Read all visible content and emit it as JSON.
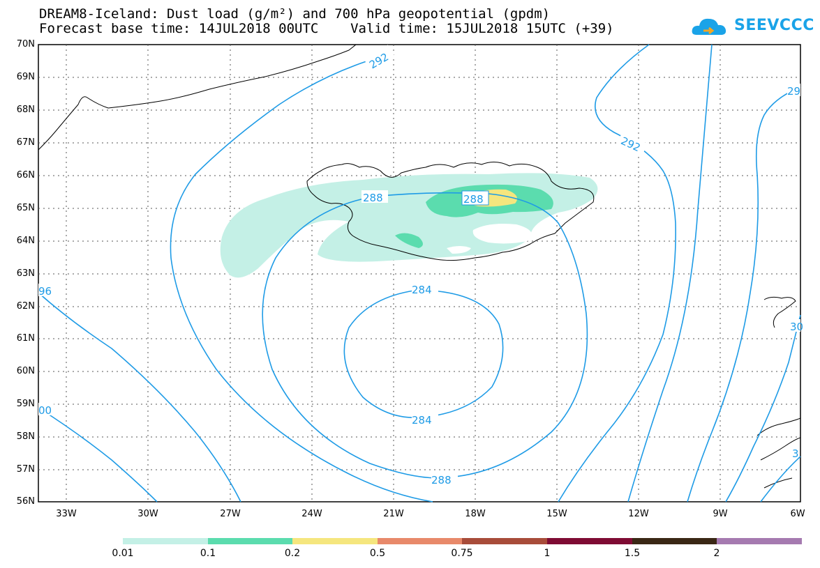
{
  "header": {
    "title_line1": "DREAM8-Iceland: Dust load (g/m²) and 700 hPa geopotential (gpdm)",
    "title_line2": "Forecast base time: 14JUL2018 00UTC    Valid time: 15JUL2018 15UTC (+39)"
  },
  "logo": {
    "text": "SEEVCCC",
    "color": "#1aa3e8"
  },
  "map": {
    "lat_labels": [
      "70N",
      "69N",
      "68N",
      "67N",
      "66N",
      "65N",
      "64N",
      "63N",
      "62N",
      "61N",
      "60N",
      "59N",
      "58N",
      "57N",
      "56N"
    ],
    "lon_labels": [
      "33W",
      "30W",
      "27W",
      "24W",
      "21W",
      "18W",
      "15W",
      "12W",
      "9W",
      "6W"
    ],
    "contour_color": "#1e9be6",
    "contour_labels": [
      {
        "text": "292",
        "name": "contour-label-292-north"
      },
      {
        "text": "292",
        "name": "contour-label-292-east"
      },
      {
        "text": "29",
        "name": "contour-label-29-ne"
      },
      {
        "text": "288",
        "name": "contour-label-288-west"
      },
      {
        "text": "288",
        "name": "contour-label-288-iceland"
      },
      {
        "text": "288",
        "name": "contour-label-288-south"
      },
      {
        "text": "284",
        "name": "contour-label-284-north"
      },
      {
        "text": "284",
        "name": "contour-label-284-south"
      },
      {
        "text": "96",
        "name": "contour-label-96-west"
      },
      {
        "text": "00",
        "name": "contour-label-00-west"
      },
      {
        "text": "30",
        "name": "contour-label-30-east"
      },
      {
        "text": "3",
        "name": "contour-label-3-se"
      }
    ]
  },
  "legend": {
    "colors": [
      "#c4f0e6",
      "#5bdcae",
      "#f5e67e",
      "#e8896a",
      "#a84c3a",
      "#7e0b33",
      "#3a2715",
      "#a57ab0"
    ],
    "labels": [
      "0.01",
      "0.1",
      "0.2",
      "0.5",
      "0.75",
      "1",
      "1.5",
      "2"
    ]
  }
}
